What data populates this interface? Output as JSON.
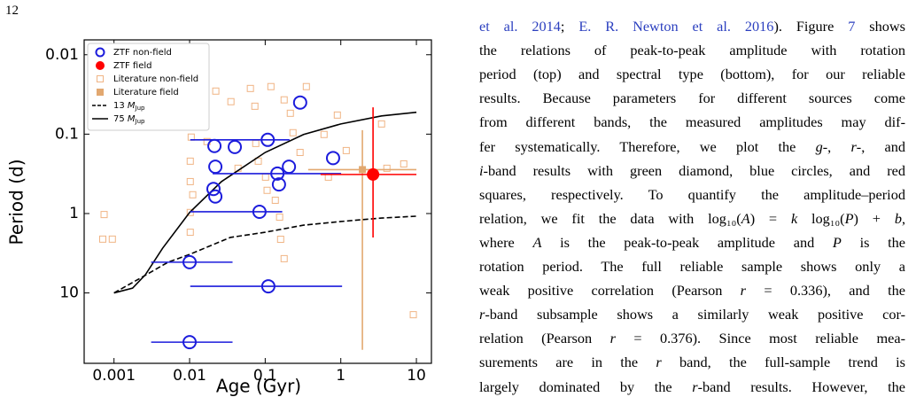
{
  "page_number": "12",
  "chart_data": {
    "type": "scatter",
    "x_label": "Age (Gyr)",
    "y_label": "Period (d)",
    "log_x": true,
    "log_y": true,
    "y_inverted": true,
    "grid": false,
    "legend": "upper left",
    "xlim": [
      0.000403,
      15.8
    ],
    "ylim": [
      0.0065,
      77
    ],
    "xticks": [
      0.001,
      0.01,
      0.1,
      1,
      10
    ],
    "yticks": [
      0.01,
      0.1,
      1,
      10
    ],
    "series": [
      {
        "name": "ZTF non-field",
        "marker": "open-circle",
        "color": "#1c1cdc",
        "x": [
          0.29,
          0.108,
          0.0213,
          0.0396,
          0.0219,
          0.79,
          0.206,
          0.145,
          0.152,
          0.0207,
          0.0219,
          0.084,
          0.01,
          0.11,
          0.01
        ],
        "y": [
          0.04,
          0.118,
          0.141,
          0.145,
          0.257,
          0.2,
          0.257,
          0.314,
          0.43,
          0.49,
          0.61,
          0.95,
          4.1,
          8.25,
          41.7
        ],
        "xmin": [
          null,
          0.0102,
          null,
          null,
          null,
          null,
          null,
          0.0202,
          null,
          null,
          null,
          0.0102,
          0.0031,
          0.0102,
          0.0031
        ],
        "xmax": [
          null,
          0.21,
          null,
          null,
          null,
          null,
          null,
          1.01,
          null,
          null,
          null,
          0.168,
          0.037,
          1.04,
          0.037
        ]
      },
      {
        "name": "ZTF field",
        "marker": "filled-circle",
        "color": "#ff0000",
        "x": [
          2.67
        ],
        "y": [
          0.322
        ],
        "xmin": [
          0.54
        ],
        "xmax": [
          10
        ],
        "ymin": [
          0.046
        ],
        "ymax": [
          2.0
        ]
      },
      {
        "name": "Literature non-field",
        "marker": "open-square",
        "color": "#f0b484",
        "x": [
          0.00074,
          0.00071,
          0.00095,
          0.0222,
          0.0352,
          0.0637,
          0.073,
          0.119,
          0.178,
          0.215,
          0.0105,
          0.017,
          0.0102,
          0.0102,
          0.011,
          0.0102,
          0.0102,
          0.0437,
          0.075,
          0.081,
          0.136,
          0.155,
          0.16,
          0.178,
          0.233,
          0.289,
          0.6,
          0.685,
          0.9,
          4.07,
          6.8,
          9.1,
          3.46,
          0.101,
          0.106,
          0.35,
          1.18
        ],
        "y": [
          1.03,
          2.1,
          2.1,
          0.0287,
          0.039,
          0.0266,
          0.0445,
          0.0252,
          0.037,
          0.0546,
          0.109,
          0.124,
          0.219,
          0.396,
          0.58,
          0.97,
          1.72,
          0.269,
          0.131,
          0.219,
          0.68,
          1.11,
          2.11,
          3.7,
          0.096,
          0.17,
          0.101,
          0.348,
          0.0575,
          0.269,
          0.237,
          18.8,
          0.0744,
          0.348,
          0.51,
          0.0252,
          0.161
        ]
      },
      {
        "name": "Literature field",
        "marker": "filled-square",
        "color": "#e2a870",
        "x": [
          1.93
        ],
        "y": [
          0.28
        ],
        "xmin": [
          0.37
        ],
        "xmax": [
          10
        ],
        "ymin": [
          0.089
        ],
        "ymax": [
          52
        ]
      },
      {
        "name": [
          "13 ",
          "M",
          "Jup"
        ],
        "marker": "dashed-line",
        "color": "#000000",
        "x": [
          0.001,
          0.0023,
          0.0052,
          0.01,
          0.0346,
          0.1,
          0.322,
          1,
          3.46,
          10
        ],
        "y": [
          10,
          6.4,
          4.1,
          3.27,
          2.0,
          1.72,
          1.4,
          1.26,
          1.14,
          1.08
        ]
      },
      {
        "name": [
          "75 ",
          "M",
          "Jup"
        ],
        "marker": "solid-line",
        "color": "#000000",
        "x": [
          0.001,
          0.00176,
          0.0026,
          0.0044,
          0.01,
          0.0264,
          0.1,
          0.322,
          1,
          3.46,
          10
        ],
        "y": [
          10,
          8.7,
          5.9,
          2.73,
          0.97,
          0.396,
          0.17,
          0.101,
          0.0744,
          0.059,
          0.053
        ]
      }
    ]
  },
  "body_text": {
    "lines": [
      [
        {
          "text": "et al. 2014",
          "style": "link"
        },
        "; ",
        {
          "text": "E. R. Newton et al. 2016",
          "style": "link"
        },
        "). Figure ",
        {
          "text": "7",
          "style": "link"
        },
        " shows"
      ],
      [
        "the relations of peak-to-peak amplitude with rotation"
      ],
      [
        "period (top) and spectral type (bottom), for our reliable"
      ],
      [
        "results. Because parameters for different sources come"
      ],
      [
        "from different bands, the measured amplitudes may dif-"
      ],
      [
        "fer systematically. Therefore, we plot the ",
        {
          "text": "g",
          "style": "italic"
        },
        "-, ",
        {
          "text": "r",
          "style": "italic"
        },
        "-, and"
      ],
      [
        {
          "text": "i",
          "style": "italic"
        },
        "-band results with green diamond, blue circles, and red"
      ],
      [
        "squares, respectively. To quantify the amplitude–period"
      ],
      [
        "relation, we fit the data with log₁₀(",
        {
          "text": "A",
          "style": "italic"
        },
        ") = ",
        {
          "text": "k",
          "style": "italic"
        },
        " log₁₀(",
        {
          "text": "P",
          "style": "italic"
        },
        ") + ",
        {
          "text": "b",
          "style": "italic"
        },
        ","
      ],
      [
        "where ",
        {
          "text": "A",
          "style": "italic"
        },
        " is the peak-to-peak amplitude and ",
        {
          "text": "P",
          "style": "italic"
        },
        " is the"
      ],
      [
        "rotation period. The full reliable sample shows only a"
      ],
      [
        "weak positive correlation (Pearson ",
        {
          "text": "r",
          "style": "italic"
        },
        " = 0.336), and the"
      ],
      [
        {
          "text": "r",
          "style": "italic"
        },
        "-band subsample shows a similarly weak positive cor-"
      ],
      [
        "relation (Pearson ",
        {
          "text": "r",
          "style": "italic"
        },
        " = 0.376). Since most reliable mea-"
      ],
      [
        "surements are in the ",
        {
          "text": "r",
          "style": "italic"
        },
        " band, the full-sample trend is"
      ],
      [
        "largely dominated by the ",
        {
          "text": "r",
          "style": "italic"
        },
        "-band results. However, the"
      ]
    ]
  }
}
